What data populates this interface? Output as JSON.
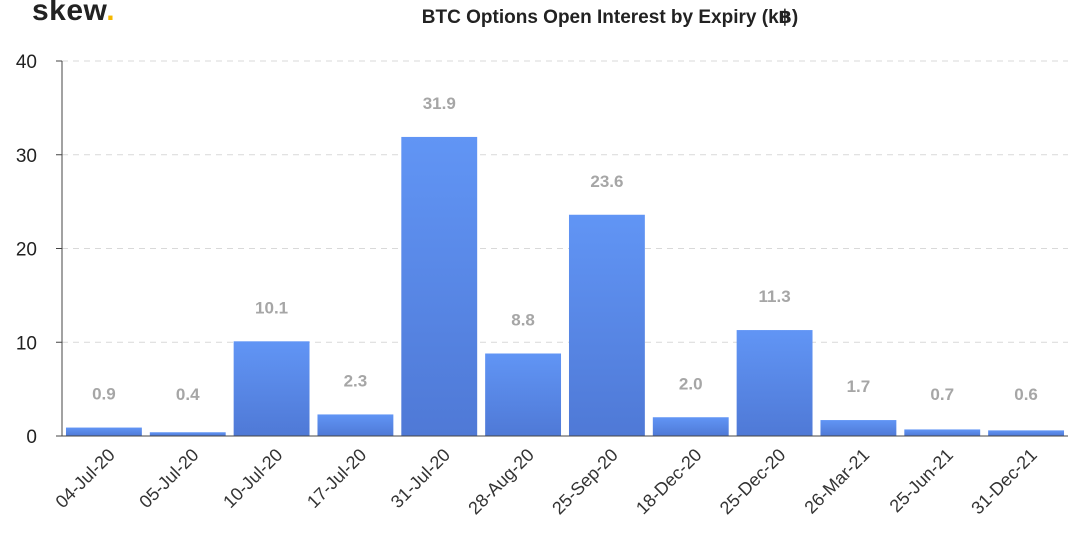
{
  "logo": {
    "text": "skew",
    "dot": ".",
    "dot_color": "#f5b800"
  },
  "chart_data": {
    "type": "bar",
    "title": "BTC Options Open Interest by Expiry (k฿)",
    "categories": [
      "04-Jul-20",
      "05-Jul-20",
      "10-Jul-20",
      "17-Jul-20",
      "31-Jul-20",
      "28-Aug-20",
      "25-Sep-20",
      "18-Dec-20",
      "25-Dec-20",
      "26-Mar-21",
      "25-Jun-21",
      "31-Dec-21"
    ],
    "values": [
      0.9,
      0.4,
      10.1,
      2.3,
      31.9,
      8.8,
      23.6,
      2.0,
      11.3,
      1.7,
      0.7,
      0.6
    ],
    "data_labels": [
      "0.9",
      "0.4",
      "10.1",
      "2.3",
      "31.9",
      "8.8",
      "23.6",
      "2.0",
      "11.3",
      "1.7",
      "0.7",
      "0.6"
    ],
    "yticks": [
      0,
      10,
      20,
      30,
      40
    ],
    "ylim": [
      0,
      40
    ],
    "grid": true,
    "xlabel": "",
    "ylabel": "",
    "bar_color_top": "#6195f5",
    "bar_color_bottom": "#4f79d6"
  }
}
